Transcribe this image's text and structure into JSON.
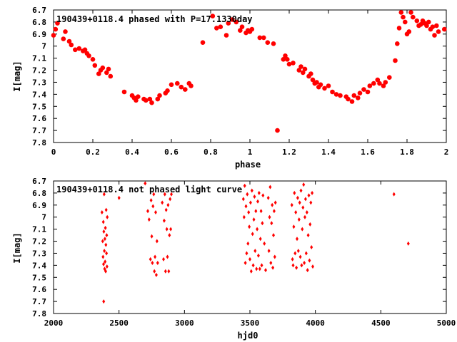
{
  "colors": {
    "points": "#ff0000",
    "axes": "#000000",
    "background": "#ffffff"
  },
  "chart_data": [
    {
      "type": "scatter",
      "title": "190439+0118.4 phased with P=17.1330day",
      "xlabel": "phase",
      "ylabel": "I[mag]",
      "xlim": [
        0,
        2
      ],
      "ylim": [
        6.7,
        7.8
      ],
      "y_inverted": true,
      "grid": false,
      "marker": "large-filled-circle",
      "xticks": [
        0,
        0.2,
        0.4,
        0.6,
        0.8,
        1,
        1.2,
        1.4,
        1.6,
        1.8,
        2
      ],
      "xtick_labels": [
        "0",
        "0.2",
        "0.4",
        "0.6",
        "0.8",
        "1",
        "1.2",
        "1.4",
        "1.6",
        "1.8",
        "2"
      ],
      "yticks": [
        6.7,
        6.8,
        6.9,
        7.0,
        7.1,
        7.2,
        7.3,
        7.4,
        7.5,
        7.6,
        7.7,
        7.8
      ],
      "ytick_labels": [
        "6.7",
        "6.8",
        "6.9",
        "7",
        "7.1",
        "7.2",
        "7.3",
        "7.4",
        "7.5",
        "7.6",
        "7.7",
        "7.8"
      ],
      "points": [
        [
          0.0,
          6.91
        ],
        [
          0.01,
          6.86
        ],
        [
          0.02,
          6.81
        ],
        [
          0.05,
          6.94
        ],
        [
          0.06,
          6.88
        ],
        [
          0.08,
          6.96
        ],
        [
          0.09,
          6.99
        ],
        [
          0.11,
          7.03
        ],
        [
          0.13,
          7.02
        ],
        [
          0.15,
          7.04
        ],
        [
          0.16,
          7.03
        ],
        [
          0.17,
          7.06
        ],
        [
          0.18,
          7.08
        ],
        [
          0.2,
          7.11
        ],
        [
          0.21,
          7.16
        ],
        [
          0.23,
          7.23
        ],
        [
          0.24,
          7.2
        ],
        [
          0.25,
          7.18
        ],
        [
          0.27,
          7.22
        ],
        [
          0.28,
          7.19
        ],
        [
          0.29,
          7.25
        ],
        [
          0.36,
          7.38
        ],
        [
          0.4,
          7.41
        ],
        [
          0.41,
          7.43
        ],
        [
          0.42,
          7.45
        ],
        [
          0.43,
          7.42
        ],
        [
          0.46,
          7.44
        ],
        [
          0.47,
          7.45
        ],
        [
          0.49,
          7.44
        ],
        [
          0.5,
          7.47
        ],
        [
          0.53,
          7.44
        ],
        [
          0.54,
          7.41
        ],
        [
          0.57,
          7.39
        ],
        [
          0.58,
          7.37
        ],
        [
          0.6,
          7.32
        ],
        [
          0.63,
          7.31
        ],
        [
          0.65,
          7.34
        ],
        [
          0.67,
          7.36
        ],
        [
          0.69,
          7.31
        ],
        [
          0.7,
          7.33
        ],
        [
          0.76,
          6.97
        ],
        [
          0.81,
          6.75
        ],
        [
          0.83,
          6.85
        ],
        [
          0.85,
          6.84
        ],
        [
          0.88,
          6.91
        ],
        [
          0.89,
          6.81
        ],
        [
          0.91,
          6.78
        ],
        [
          0.93,
          6.8
        ],
        [
          0.95,
          6.87
        ],
        [
          0.96,
          6.84
        ],
        [
          0.98,
          6.89
        ],
        [
          0.99,
          6.87
        ],
        [
          1.0,
          6.88
        ],
        [
          1.01,
          6.86
        ],
        [
          1.05,
          6.93
        ],
        [
          1.07,
          6.93
        ],
        [
          1.09,
          6.97
        ],
        [
          1.12,
          6.98
        ],
        [
          1.14,
          7.7
        ],
        [
          1.17,
          7.11
        ],
        [
          1.18,
          7.08
        ],
        [
          1.19,
          7.11
        ],
        [
          1.2,
          7.15
        ],
        [
          1.22,
          7.14
        ],
        [
          1.25,
          7.2
        ],
        [
          1.26,
          7.17
        ],
        [
          1.27,
          7.22
        ],
        [
          1.28,
          7.19
        ],
        [
          1.3,
          7.25
        ],
        [
          1.31,
          7.23
        ],
        [
          1.32,
          7.28
        ],
        [
          1.33,
          7.31
        ],
        [
          1.34,
          7.3
        ],
        [
          1.35,
          7.34
        ],
        [
          1.36,
          7.32
        ],
        [
          1.38,
          7.35
        ],
        [
          1.4,
          7.33
        ],
        [
          1.42,
          7.38
        ],
        [
          1.44,
          7.4
        ],
        [
          1.46,
          7.41
        ],
        [
          1.49,
          7.42
        ],
        [
          1.5,
          7.44
        ],
        [
          1.52,
          7.46
        ],
        [
          1.53,
          7.41
        ],
        [
          1.55,
          7.43
        ],
        [
          1.56,
          7.39
        ],
        [
          1.58,
          7.36
        ],
        [
          1.6,
          7.38
        ],
        [
          1.61,
          7.33
        ],
        [
          1.63,
          7.31
        ],
        [
          1.65,
          7.28
        ],
        [
          1.66,
          7.31
        ],
        [
          1.68,
          7.33
        ],
        [
          1.69,
          7.3
        ],
        [
          1.71,
          7.26
        ],
        [
          1.74,
          7.12
        ],
        [
          1.75,
          6.98
        ],
        [
          1.76,
          6.85
        ],
        [
          1.77,
          6.72
        ],
        [
          1.78,
          6.76
        ],
        [
          1.79,
          6.8
        ],
        [
          1.8,
          6.9
        ],
        [
          1.81,
          6.88
        ],
        [
          1.82,
          6.72
        ],
        [
          1.83,
          6.76
        ],
        [
          1.85,
          6.79
        ],
        [
          1.86,
          6.83
        ],
        [
          1.87,
          6.82
        ],
        [
          1.88,
          6.79
        ],
        [
          1.89,
          6.81
        ],
        [
          1.9,
          6.83
        ],
        [
          1.91,
          6.8
        ],
        [
          1.92,
          6.86
        ],
        [
          1.93,
          6.84
        ],
        [
          1.94,
          6.91
        ],
        [
          1.95,
          6.83
        ],
        [
          1.96,
          6.88
        ],
        [
          1.99,
          6.86
        ]
      ]
    },
    {
      "type": "scatter",
      "title": "190439+0118.4 not phased light curve",
      "xlabel": "hjd0",
      "ylabel": "I[mag]",
      "xlim": [
        2000,
        5000
      ],
      "ylim": [
        6.7,
        7.8
      ],
      "y_inverted": true,
      "grid": false,
      "marker": "small-filled-diamond",
      "xticks": [
        2000,
        2500,
        3000,
        3500,
        4000,
        4500,
        5000
      ],
      "xtick_labels": [
        "2000",
        "2500",
        "3000",
        "3500",
        "4000",
        "4500",
        "5000"
      ],
      "yticks": [
        6.7,
        6.8,
        6.9,
        7.0,
        7.1,
        7.2,
        7.3,
        7.4,
        7.5,
        7.6,
        7.7,
        7.8
      ],
      "ytick_labels": [
        "6.7",
        "6.8",
        "6.9",
        "7",
        "7.1",
        "7.2",
        "7.3",
        "7.4",
        "7.5",
        "7.6",
        "7.7",
        "7.8"
      ],
      "points": [
        [
          2370,
          6.96
        ],
        [
          2375,
          7.2
        ],
        [
          2378,
          7.33
        ],
        [
          2380,
          7.04
        ],
        [
          2382,
          7.39
        ],
        [
          2384,
          7.12
        ],
        [
          2386,
          6.81
        ],
        [
          2388,
          7.28
        ],
        [
          2390,
          7.43
        ],
        [
          2392,
          7.18
        ],
        [
          2394,
          7.37
        ],
        [
          2396,
          7.09
        ],
        [
          2398,
          7.45
        ],
        [
          2400,
          7.23
        ],
        [
          2402,
          6.94
        ],
        [
          2404,
          7.3
        ],
        [
          2406,
          7.15
        ],
        [
          2408,
          7.41
        ],
        [
          2410,
          7.0
        ],
        [
          2383,
          7.7
        ],
        [
          2500,
          6.84
        ],
        [
          2700,
          6.72
        ],
        [
          2720,
          6.95
        ],
        [
          2730,
          7.02
        ],
        [
          2740,
          7.35
        ],
        [
          2745,
          6.86
        ],
        [
          2750,
          7.16
        ],
        [
          2755,
          7.38
        ],
        [
          2760,
          6.91
        ],
        [
          2765,
          6.81
        ],
        [
          2770,
          7.45
        ],
        [
          2775,
          7.33
        ],
        [
          2780,
          6.96
        ],
        [
          2785,
          7.48
        ],
        [
          2790,
          7.2
        ],
        [
          2795,
          7.38
        ],
        [
          2830,
          6.88
        ],
        [
          2840,
          7.35
        ],
        [
          2845,
          7.03
        ],
        [
          2850,
          6.81
        ],
        [
          2855,
          7.45
        ],
        [
          2860,
          6.94
        ],
        [
          2865,
          7.1
        ],
        [
          2870,
          7.33
        ],
        [
          2875,
          6.9
        ],
        [
          2880,
          7.45
        ],
        [
          2885,
          7.15
        ],
        [
          2890,
          6.85
        ],
        [
          2895,
          7.1
        ],
        [
          2900,
          6.81
        ],
        [
          3450,
          6.85
        ],
        [
          3455,
          7.0
        ],
        [
          3460,
          6.74
        ],
        [
          3465,
          7.38
        ],
        [
          3470,
          6.91
        ],
        [
          3475,
          7.3
        ],
        [
          3480,
          6.81
        ],
        [
          3485,
          7.22
        ],
        [
          3490,
          6.96
        ],
        [
          3495,
          7.08
        ],
        [
          3500,
          7.35
        ],
        [
          3505,
          6.88
        ],
        [
          3510,
          7.45
        ],
        [
          3515,
          6.78
        ],
        [
          3520,
          7.14
        ],
        [
          3525,
          7.4
        ],
        [
          3530,
          7.02
        ],
        [
          3535,
          6.83
        ],
        [
          3540,
          7.28
        ],
        [
          3545,
          6.95
        ],
        [
          3550,
          7.43
        ],
        [
          3555,
          7.1
        ],
        [
          3560,
          6.87
        ],
        [
          3565,
          7.32
        ],
        [
          3570,
          6.8
        ],
        [
          3575,
          7.43
        ],
        [
          3580,
          7.18
        ],
        [
          3585,
          6.95
        ],
        [
          3590,
          7.4
        ],
        [
          3595,
          7.05
        ],
        [
          3600,
          6.82
        ],
        [
          3610,
          7.22
        ],
        [
          3620,
          7.44
        ],
        [
          3640,
          6.84
        ],
        [
          3645,
          7.28
        ],
        [
          3650,
          7.0
        ],
        [
          3655,
          6.75
        ],
        [
          3660,
          7.38
        ],
        [
          3665,
          7.05
        ],
        [
          3670,
          6.9
        ],
        [
          3675,
          7.42
        ],
        [
          3680,
          7.15
        ],
        [
          3685,
          6.95
        ],
        [
          3690,
          7.33
        ],
        [
          3695,
          6.88
        ],
        [
          3820,
          6.9
        ],
        [
          3825,
          7.35
        ],
        [
          3830,
          7.4
        ],
        [
          3835,
          7.08
        ],
        [
          3840,
          6.8
        ],
        [
          3845,
          7.3
        ],
        [
          3850,
          6.96
        ],
        [
          3855,
          7.42
        ],
        [
          3860,
          7.18
        ],
        [
          3865,
          6.84
        ],
        [
          3870,
          7.28
        ],
        [
          3875,
          7.02
        ],
        [
          3880,
          6.88
        ],
        [
          3885,
          7.33
        ],
        [
          3890,
          6.78
        ],
        [
          3895,
          7.4
        ],
        [
          3900,
          7.1
        ],
        [
          3905,
          6.92
        ],
        [
          3910,
          6.73
        ],
        [
          3915,
          7.38
        ],
        [
          3920,
          7.0
        ],
        [
          3925,
          6.85
        ],
        [
          3930,
          7.3
        ],
        [
          3935,
          6.96
        ],
        [
          3940,
          7.44
        ],
        [
          3945,
          7.15
        ],
        [
          3950,
          6.82
        ],
        [
          3955,
          7.36
        ],
        [
          3960,
          7.06
        ],
        [
          3965,
          6.88
        ],
        [
          3970,
          7.25
        ],
        [
          3975,
          6.8
        ],
        [
          3980,
          7.41
        ],
        [
          4600,
          6.81
        ],
        [
          4710,
          7.22
        ]
      ]
    }
  ]
}
